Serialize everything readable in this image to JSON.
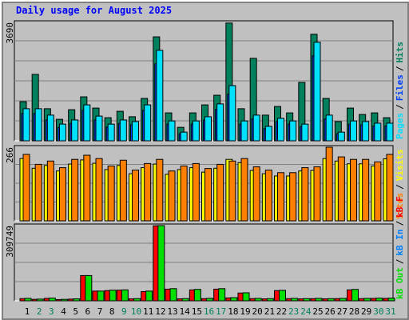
{
  "chart_data": [
    {
      "type": "bar",
      "title": "Daily usage for August 2025",
      "ylim": [
        0,
        3690
      ],
      "yticks": [
        3690
      ],
      "legend_separator": "/",
      "series": [
        {
          "name": "Hits",
          "color": "#00805c",
          "values": [
            1220,
            2070,
            1000,
            670,
            970,
            1370,
            1020,
            720,
            920,
            750,
            1320,
            3240,
            870,
            420,
            870,
            1120,
            1420,
            3670,
            1000,
            2570,
            800,
            1070,
            870,
            1820,
            3320,
            1320,
            600,
            1020,
            820,
            870,
            720
          ]
        },
        {
          "name": "Files",
          "color": "#0040ff",
          "values": [
            850,
            850,
            650,
            420,
            540,
            950,
            650,
            430,
            540,
            500,
            950,
            2400,
            520,
            220,
            520,
            640,
            980,
            1450,
            520,
            680,
            380,
            600,
            520,
            440,
            2650,
            680,
            220,
            520,
            500,
            460,
            460
          ]
        },
        {
          "name": "Pages",
          "color": "#00e0ff",
          "values": [
            1000,
            1000,
            800,
            520,
            650,
            1120,
            770,
            520,
            650,
            600,
            1120,
            2820,
            620,
            270,
            620,
            750,
            1150,
            1720,
            620,
            800,
            450,
            700,
            620,
            520,
            3070,
            800,
            270,
            620,
            600,
            550,
            550
          ]
        }
      ]
    },
    {
      "type": "bar",
      "ylim": [
        0,
        266
      ],
      "yticks": [
        266
      ],
      "legend_separator": "/",
      "series": [
        {
          "name": "Visits",
          "color": "#ffff00",
          "values": [
            225,
            190,
            200,
            180,
            205,
            220,
            208,
            185,
            200,
            170,
            192,
            205,
            168,
            185,
            192,
            176,
            190,
            222,
            210,
            182,
            170,
            162,
            162,
            180,
            182,
            225,
            216,
            206,
            206,
            198,
            224
          ]
        },
        {
          "name": "Sites",
          "color": "#ff8000",
          "values": [
            240,
            204,
            216,
            192,
            222,
            237,
            225,
            198,
            219,
            183,
            207,
            222,
            180,
            198,
            207,
            189,
            204,
            216,
            225,
            195,
            183,
            174,
            174,
            192,
            195,
            266,
            231,
            222,
            222,
            213,
            240
          ]
        }
      ]
    },
    {
      "type": "bar",
      "ylim": [
        0,
        309749
      ],
      "yticks": [
        309749
      ],
      "legend_separator": "/",
      "categories": [
        "1",
        "2",
        "3",
        "4",
        "5",
        "6",
        "7",
        "8",
        "9",
        "10",
        "11",
        "12",
        "13",
        "14",
        "15",
        "16",
        "17",
        "18",
        "19",
        "20",
        "21",
        "22",
        "23",
        "24",
        "25",
        "26",
        "27",
        "28",
        "29",
        "30",
        "31"
      ],
      "label_colors": [
        "#000000",
        "#00805c",
        "#00805c",
        "#000000",
        "#000000",
        "#000000",
        "#000000",
        "#000000",
        "#00805c",
        "#00805c",
        "#000000",
        "#000000",
        "#000000",
        "#000000",
        "#000000",
        "#00805c",
        "#00805c",
        "#000000",
        "#000000",
        "#000000",
        "#000000",
        "#000000",
        "#00805c",
        "#00805c",
        "#000000",
        "#000000",
        "#000000",
        "#000000",
        "#000000",
        "#00805c",
        "#00805c"
      ],
      "series": [
        {
          "name": "kB F",
          "color": "#ff0000",
          "values": [
            9000,
            6000,
            10000,
            5000,
            7000,
            104000,
            40000,
            42000,
            44000,
            8000,
            38000,
            309000,
            48000,
            8000,
            45000,
            9000,
            48000,
            12000,
            32000,
            9000,
            8000,
            42000,
            9000,
            8000,
            9000,
            8000,
            9000,
            45000,
            9000,
            10000,
            10000
          ]
        },
        {
          "name": "kB In",
          "color": "#0080ff",
          "values": [
            0,
            0,
            0,
            0,
            0,
            0,
            0,
            0,
            0,
            0,
            0,
            0,
            0,
            0,
            0,
            0,
            0,
            0,
            0,
            0,
            0,
            0,
            0,
            0,
            0,
            0,
            0,
            0,
            0,
            0,
            0
          ]
        },
        {
          "name": "kB Out",
          "color": "#00e000",
          "values": [
            10000,
            7000,
            11000,
            6000,
            8000,
            104000,
            40000,
            43700,
            45000,
            9000,
            40000,
            309749,
            50000,
            9000,
            47000,
            10000,
            50000,
            13000,
            33000,
            10000,
            9000,
            43000,
            10000,
            9000,
            10000,
            9000,
            10000,
            47000,
            10000,
            11000,
            11000
          ]
        }
      ]
    }
  ]
}
